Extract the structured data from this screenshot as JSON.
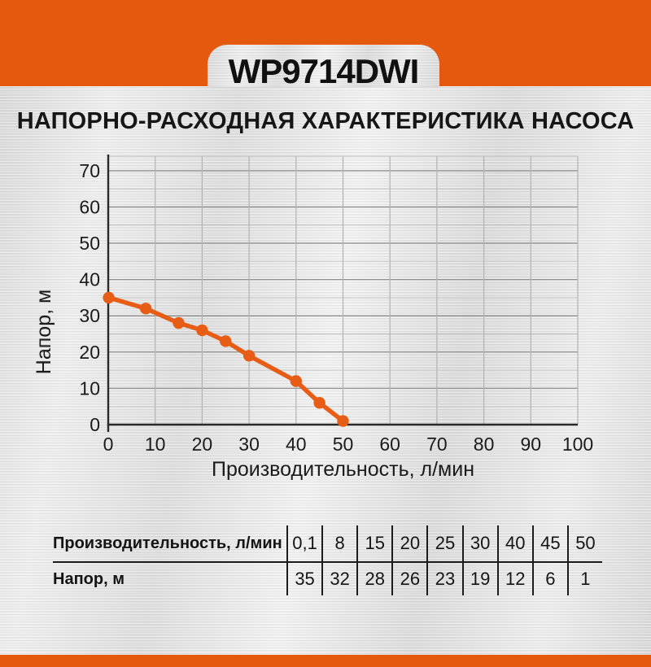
{
  "header": {
    "model": "WP9714DWI"
  },
  "page_title": "НАПОРНО-РАСХОДНАЯ ХАРАКТЕРИСТИКА НАСОСА",
  "colors": {
    "accent": "#E5590F",
    "grid_major": "#8d8d8d",
    "grid_minor": "#c8c8c8",
    "grid_vertical": "#b2b2b2",
    "plot_border": "#bdbdbd",
    "axis": "#2a2a2a",
    "text": "#1b1b1b"
  },
  "chart_data": {
    "type": "line",
    "title": "",
    "xlabel": "Производительность, л/мин",
    "ylabel": "Напор, м",
    "x": [
      0.1,
      8,
      15,
      20,
      25,
      30,
      40,
      45,
      50
    ],
    "y": [
      35,
      32,
      28,
      26,
      23,
      19,
      12,
      6,
      1
    ],
    "series_name": "Напор, м",
    "xlim": [
      0,
      100
    ],
    "ylim": [
      0,
      74
    ],
    "xticks": [
      0,
      10,
      20,
      30,
      40,
      50,
      60,
      70,
      80,
      90,
      100
    ],
    "yticks": [
      0,
      10,
      20,
      30,
      40,
      50,
      60,
      70
    ],
    "y_minor_step": 5,
    "grid": true,
    "legend": false,
    "marker": "circle",
    "line_color": "#E85D15"
  },
  "table": {
    "rows": [
      {
        "label": "Производительность, л/мин",
        "values": [
          "0,1",
          "8",
          "15",
          "20",
          "25",
          "30",
          "40",
          "45",
          "50"
        ]
      },
      {
        "label": "Напор, м",
        "values": [
          "35",
          "32",
          "28",
          "26",
          "23",
          "19",
          "12",
          "6",
          "1"
        ]
      }
    ]
  }
}
